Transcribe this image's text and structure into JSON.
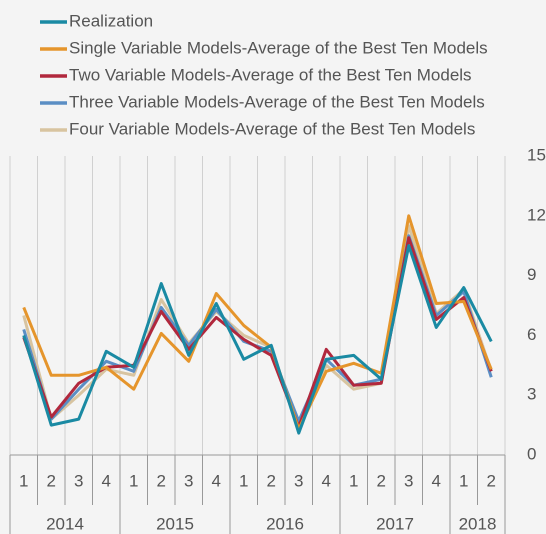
{
  "chart_data": {
    "type": "line",
    "categories": [
      "1",
      "2",
      "3",
      "4",
      "1",
      "2",
      "3",
      "4",
      "1",
      "2",
      "3",
      "4",
      "1",
      "2",
      "3",
      "4",
      "1",
      "2"
    ],
    "year_groups": [
      {
        "label": "2014",
        "count": 4
      },
      {
        "label": "2015",
        "count": 4
      },
      {
        "label": "2016",
        "count": 4
      },
      {
        "label": "2017",
        "count": 4
      },
      {
        "label": "2018",
        "count": 2
      }
    ],
    "series": [
      {
        "name": "Realization",
        "color": "#1a8aa3",
        "values": [
          6.0,
          1.5,
          1.8,
          5.2,
          4.4,
          8.6,
          5.0,
          7.6,
          4.8,
          5.5,
          1.1,
          4.8,
          5.0,
          3.8,
          10.5,
          6.4,
          8.4,
          5.7
        ]
      },
      {
        "name": "Single Variable Models-Average of the Best Ten Models",
        "color": "#e5952c",
        "values": [
          7.4,
          4.0,
          4.0,
          4.4,
          3.3,
          6.1,
          4.7,
          8.1,
          6.5,
          5.4,
          1.3,
          4.2,
          4.6,
          4.1,
          12.0,
          7.6,
          7.7,
          4.3
        ]
      },
      {
        "name": "Two Variable Models-Average of the Best Ten Models",
        "color": "#b1283d",
        "values": [
          5.9,
          1.9,
          3.6,
          4.4,
          4.5,
          7.2,
          5.3,
          6.9,
          5.8,
          5.0,
          1.4,
          5.3,
          3.5,
          3.6,
          10.9,
          6.8,
          7.9,
          4.2
        ]
      },
      {
        "name": "Three Variable Models-Average of the Best Ten Models",
        "color": "#5b8ec4",
        "values": [
          6.3,
          1.8,
          3.3,
          4.7,
          4.2,
          7.4,
          5.5,
          7.3,
          5.7,
          5.2,
          1.7,
          4.8,
          3.5,
          3.8,
          11.0,
          7.0,
          8.2,
          3.9
        ]
      },
      {
        "name": "Four Variable Models-Average of the Best Ten Models",
        "color": "#d8c4a0",
        "values": [
          7.0,
          1.8,
          3.0,
          4.3,
          4.0,
          7.8,
          5.6,
          7.2,
          6.0,
          5.4,
          1.3,
          4.5,
          3.3,
          3.6,
          11.5,
          7.1,
          8.3,
          4.2
        ]
      }
    ],
    "ylim": [
      0,
      15
    ],
    "yticks": [
      0,
      3,
      6,
      9,
      12,
      15
    ],
    "grid": "vertical"
  }
}
